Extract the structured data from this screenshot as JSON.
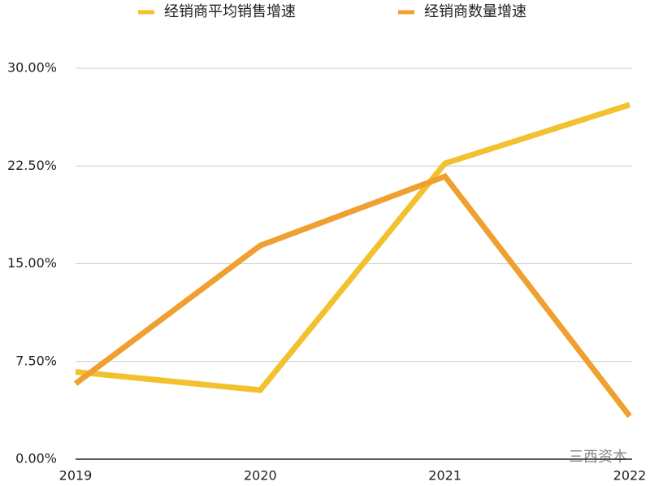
{
  "chart_data": {
    "type": "line",
    "categories": [
      "2019",
      "2020",
      "2021",
      "2022"
    ],
    "series": [
      {
        "name": "经销商平均销售增速",
        "color": "#f2c12e",
        "values": [
          6.7,
          5.3,
          22.7,
          27.2
        ]
      },
      {
        "name": "经销商数量增速",
        "color": "#f0a030",
        "values": [
          5.8,
          16.4,
          21.7,
          3.3
        ]
      }
    ],
    "ylim": [
      0,
      30
    ],
    "yticks": [
      {
        "value": 0,
        "label": "0.00%"
      },
      {
        "value": 7.5,
        "label": "7.50%"
      },
      {
        "value": 15,
        "label": "15.00%"
      },
      {
        "value": 22.5,
        "label": "22.50%"
      },
      {
        "value": 30,
        "label": "30.00%"
      }
    ],
    "grid": true,
    "legend": "top",
    "watermark": "三酉资本"
  }
}
